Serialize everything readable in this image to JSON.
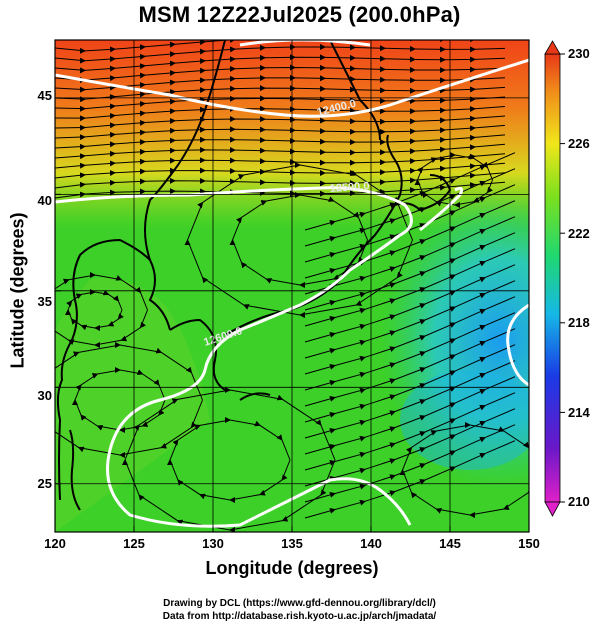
{
  "title": "MSM 12Z22Jul2025 (200.0hPa)",
  "axes": {
    "xlabel": "Longitude (degrees)",
    "ylabel": "Latitude  (degrees)",
    "xlim": [
      120,
      150
    ],
    "ylim": [
      22.5,
      48
    ],
    "xticks": [
      "120",
      "125",
      "130",
      "135",
      "140",
      "145",
      "150"
    ],
    "yticks": [
      "25",
      "30",
      "35",
      "40",
      "45"
    ]
  },
  "colorbar": {
    "min": 210,
    "max": 230,
    "ticks": [
      "230",
      "226",
      "222",
      "218",
      "214",
      "210"
    ]
  },
  "contours": {
    "labels": [
      "12400.0",
      "12500.0",
      "12600.0"
    ]
  },
  "credits": {
    "line1": "Drawing by DCL (https://www.gfd-dennou.org/library/dcl/)",
    "line2": "Data from http://database.rish.kyoto-u.ac.jp/arch/jmadata/"
  },
  "colors": {
    "warm": "#f04a1a",
    "neutral": "#3cd028",
    "cool": "#1aa8e6",
    "contour": "#ffffff",
    "arrows": "#000000"
  }
}
